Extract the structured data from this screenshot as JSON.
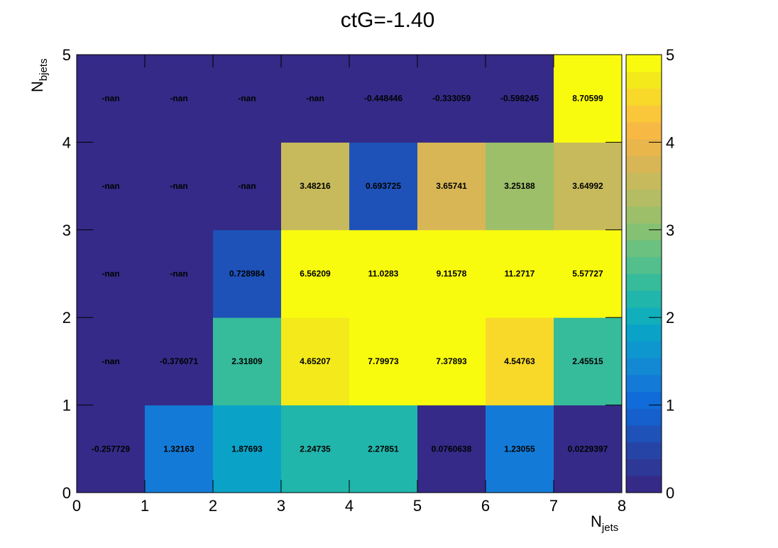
{
  "chart_data": {
    "type": "heatmap",
    "title": "ctG=-1.40",
    "xlabel_main": "N",
    "xlabel_sub": "jets",
    "ylabel_main": "N",
    "ylabel_sub": "bjets",
    "x_bins": [
      0,
      1,
      2,
      3,
      4,
      5,
      6,
      7,
      8
    ],
    "y_bins": [
      0,
      1,
      2,
      3,
      4,
      5
    ],
    "x_tick_labels": [
      "0",
      "1",
      "2",
      "3",
      "4",
      "5",
      "6",
      "7",
      "8"
    ],
    "y_tick_labels": [
      "0",
      "1",
      "2",
      "3",
      "4",
      "5"
    ],
    "z_range": [
      0,
      5
    ],
    "z_tick_labels": [
      "0",
      "1",
      "2",
      "3",
      "4",
      "5"
    ],
    "colormap": [
      "#352a87",
      "#2e3896",
      "#2644a6",
      "#1e52b8",
      "#1560cc",
      "#0f6cd8",
      "#137bd7",
      "#1389d3",
      "#0e97cf",
      "#0aa3c7",
      "#11aebb",
      "#21b6ab",
      "#36bb9b",
      "#52bf8c",
      "#6bc17f",
      "#85c172",
      "#9ebf6a",
      "#b4bd64",
      "#c6ba5c",
      "#d8b656",
      "#e9b64c",
      "#f7b844",
      "#fbc73a",
      "#f8d92a",
      "#f4e91b",
      "#f9fb0e"
    ],
    "values": [
      [
        "-0.257729",
        "1.32163",
        "1.87693",
        "2.24735",
        "2.27851",
        "0.0760638",
        "1.23055",
        "0.0229397"
      ],
      [
        "-nan",
        "-0.376071",
        "2.31809",
        "4.65207",
        "7.79973",
        "7.37893",
        "4.54763",
        "2.45515"
      ],
      [
        "-nan",
        "-nan",
        "0.728984",
        "6.56209",
        "11.0283",
        "9.11578",
        "11.2717",
        "5.57727"
      ],
      [
        "-nan",
        "-nan",
        "-nan",
        "3.48216",
        "0.693725",
        "3.65741",
        "3.25188",
        "3.64992"
      ],
      [
        "-nan",
        "-nan",
        "-nan",
        "-nan",
        "-0.448446",
        "-0.333059",
        "-0.598245",
        "8.70599"
      ]
    ]
  }
}
